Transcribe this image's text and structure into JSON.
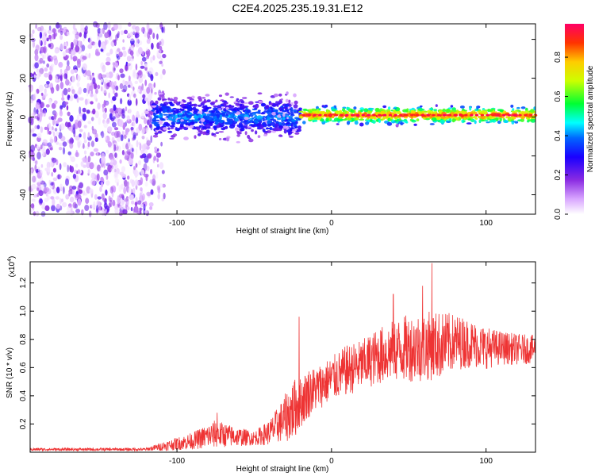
{
  "title": "C2E4.2025.235.19.31.E12",
  "chart_data": [
    {
      "type": "heatmap",
      "name": "spectrogram",
      "xlabel": "Height of straight line (km)",
      "ylabel": "Frequency (Hz)",
      "xlim": [
        -195,
        132
      ],
      "ylim": [
        -50,
        48
      ],
      "xticks": [
        -100,
        0,
        100
      ],
      "yticks": [
        -40,
        -20,
        0,
        20,
        40
      ],
      "colorbar": {
        "label": "Normalized spectral amplitude",
        "range": [
          0,
          0.97
        ],
        "ticks": [
          "0.0",
          "0.2",
          "0.4",
          "0.6",
          "0.8"
        ],
        "tick_values": [
          0.0,
          0.2,
          0.4,
          0.6,
          0.8
        ],
        "colors": [
          "#ffffff",
          "#cc66ff",
          "#6600cc",
          "#0000ff",
          "#00ffff",
          "#00ff00",
          "#ffff00",
          "#ff8800",
          "#ff0000",
          "#ff0066"
        ]
      },
      "regions": [
        {
          "description": "broadband noise",
          "x_range": [
            -195,
            -115
          ],
          "y_range": [
            -50,
            48
          ],
          "level": 0.1
        },
        {
          "description": "transition",
          "x_range": [
            -115,
            -108
          ],
          "y_range": [
            -50,
            48
          ],
          "level": 0.05
        },
        {
          "description": "signal band",
          "x_range": [
            -115,
            -20
          ],
          "center_hz": 0,
          "half_width_hz": 7,
          "level": 0.25
        },
        {
          "description": "narrow signal",
          "x_range": [
            -20,
            132
          ],
          "center_hz": 1,
          "half_width_hz": 3,
          "level": 0.75
        }
      ]
    },
    {
      "type": "line",
      "name": "snr",
      "xlabel": "Height of straight line (km)",
      "ylabel": "SNR (10 * v/v)",
      "scale_label_base": "(x10",
      "scale_label_exp": "4",
      "scale_label_end": ")",
      "xlim": [
        -195,
        132
      ],
      "ylim": [
        0,
        1.35
      ],
      "xticks": [
        -100,
        0,
        100
      ],
      "yticks": [
        "0.2",
        "0.4",
        "0.6",
        "0.8",
        "1.0",
        "1.2"
      ],
      "ytick_values": [
        0.2,
        0.4,
        0.6,
        0.8,
        1.0,
        1.2
      ],
      "color": "#ee3333",
      "envelope": {
        "x": [
          -195,
          -120,
          -110,
          -90,
          -75,
          -62,
          -50,
          -40,
          -32,
          -25,
          -20,
          -15,
          -10,
          0,
          10,
          20,
          30,
          40,
          50,
          60,
          70,
          80,
          90,
          100,
          110,
          120,
          132
        ],
        "mean": [
          0.02,
          0.02,
          0.04,
          0.08,
          0.13,
          0.11,
          0.1,
          0.14,
          0.22,
          0.3,
          0.35,
          0.42,
          0.45,
          0.52,
          0.58,
          0.62,
          0.68,
          0.72,
          0.74,
          0.75,
          0.76,
          0.78,
          0.77,
          0.74,
          0.74,
          0.73,
          0.73
        ],
        "noise": [
          0.01,
          0.01,
          0.03,
          0.06,
          0.1,
          0.07,
          0.05,
          0.09,
          0.15,
          0.22,
          0.18,
          0.18,
          0.16,
          0.16,
          0.18,
          0.18,
          0.2,
          0.22,
          0.24,
          0.25,
          0.24,
          0.2,
          0.17,
          0.15,
          0.12,
          0.11,
          0.1
        ]
      },
      "peaks": [
        {
          "x": -21,
          "y": 0.96
        },
        {
          "x": 65,
          "y": 1.34
        },
        {
          "x": 59,
          "y": 1.18
        },
        {
          "x": 40,
          "y": 1.12
        },
        {
          "x": -74,
          "y": 0.28
        }
      ]
    }
  ]
}
